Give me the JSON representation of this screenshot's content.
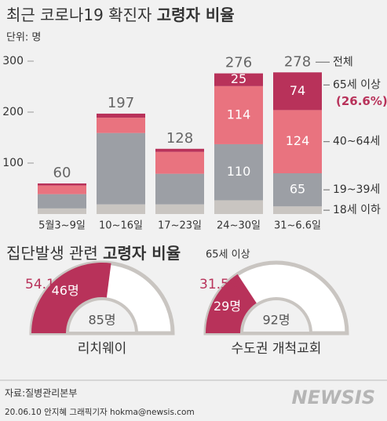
{
  "chart_data": {
    "type": "bar",
    "stacked": true,
    "title": "최근 코로나19 확진자",
    "title_emphasis": "고령자 비율",
    "unit": "단위: 명",
    "categories": [
      "5월3~9일",
      "10~16일",
      "17~23일",
      "24~30일",
      "31~6.6일"
    ],
    "ylim": [
      0,
      320
    ],
    "yticks": [
      100,
      200,
      300
    ],
    "series": [
      {
        "name": "18세 이하",
        "color": "#c9c5c1",
        "values": [
          11,
          19,
          19,
          27,
          15
        ],
        "value_labels": [
          null,
          null,
          null,
          null,
          null
        ]
      },
      {
        "name": "19~39세",
        "color": "#9c9fa5",
        "values": [
          28,
          140,
          60,
          110,
          65
        ],
        "value_labels": [
          null,
          null,
          null,
          "110",
          "65"
        ]
      },
      {
        "name": "40~64세",
        "color": "#e9737f",
        "values": [
          17,
          30,
          43,
          114,
          124
        ],
        "value_labels": [
          null,
          null,
          null,
          "114",
          "124"
        ]
      },
      {
        "name": "65세 이상",
        "color": "#b8325a",
        "values": [
          4,
          8,
          6,
          25,
          74
        ],
        "value_labels": [
          null,
          null,
          null,
          "25",
          "74"
        ]
      }
    ],
    "totals": [
      60,
      197,
      128,
      276,
      278
    ],
    "totals_name": "전체",
    "annotation": "(26.6%)"
  },
  "section2": {
    "title": "집단발생 관련",
    "title_emphasis": "고령자 비율",
    "subtitle": "65세 이상",
    "donuts": [
      {
        "name": "리치웨이",
        "percent": 54.1,
        "percent_label": "54.1%",
        "count_label": "46명",
        "total_label": "85명"
      },
      {
        "name": "수도권 개척교회",
        "percent": 31.5,
        "percent_label": "31.5%",
        "count_label": "29명",
        "total_label": "92명"
      }
    ]
  },
  "footer": {
    "source": "자료:질병관리본부",
    "credit": "20.06.10 안지혜 그래픽기자 hokma@newsis.com",
    "logo": "NEWSIS"
  }
}
